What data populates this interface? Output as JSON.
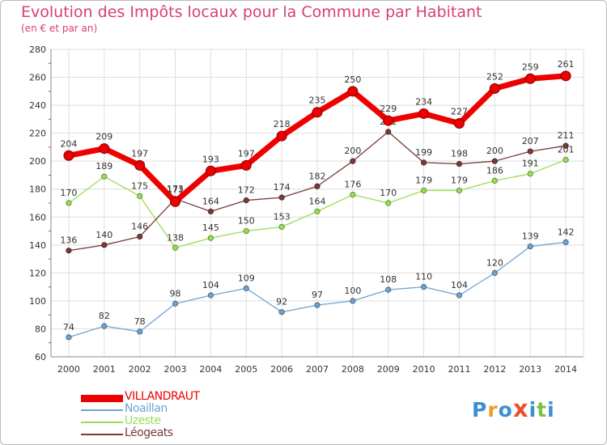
{
  "title": "Evolution des Impôts locaux pour la Commune par Habitant",
  "subtitle": "(en € et par an)",
  "chart_data": {
    "type": "line",
    "title": "Evolution des Impôts locaux pour la Commune par Habitant",
    "subtitle": "(en € et par an)",
    "xlabel": "",
    "ylabel": "",
    "x": [
      "2000",
      "2001",
      "2002",
      "2003",
      "2004",
      "2005",
      "2006",
      "2007",
      "2008",
      "2009",
      "2010",
      "2011",
      "2012",
      "2013",
      "2014"
    ],
    "ylim": [
      60,
      280
    ],
    "yticks": [
      60,
      80,
      100,
      120,
      140,
      160,
      180,
      200,
      220,
      240,
      260,
      280
    ],
    "grid": true,
    "legend_position": "bottom-left",
    "series": [
      {
        "name": "VILLANDRAUT",
        "color": "#ee0000",
        "values": [
          204,
          209,
          197,
          171,
          193,
          197,
          218,
          235,
          250,
          229,
          234,
          227,
          252,
          259,
          261
        ]
      },
      {
        "name": "Noaillan",
        "color": "#6ea3d0",
        "values": [
          74,
          82,
          78,
          98,
          104,
          109,
          92,
          97,
          100,
          108,
          110,
          104,
          120,
          139,
          142
        ]
      },
      {
        "name": "Uzeste",
        "color": "#99dd55",
        "values": [
          170,
          189,
          175,
          138,
          145,
          150,
          153,
          164,
          176,
          170,
          179,
          179,
          186,
          191,
          201
        ]
      },
      {
        "name": "Léogeats",
        "color": "#7a3a3a",
        "values": [
          136,
          140,
          146,
          173,
          164,
          172,
          174,
          182,
          200,
          221,
          199,
          198,
          200,
          207,
          211
        ]
      }
    ]
  },
  "logo": {
    "letters": [
      "P",
      "r",
      "o",
      "x",
      "i",
      "t",
      "i"
    ],
    "colors": [
      "#3a8fd6",
      "#f0a020",
      "#3a8fd6",
      "#e8522e",
      "#3a8fd6",
      "#7cc142",
      "#3a8fd6"
    ]
  }
}
